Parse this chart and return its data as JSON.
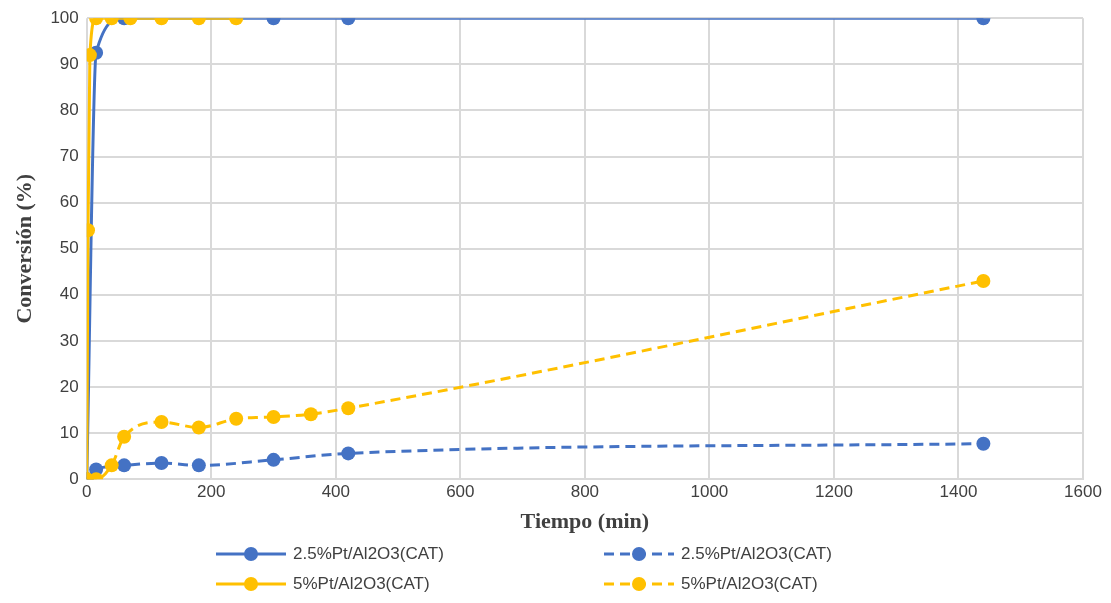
{
  "chart_data": {
    "type": "line",
    "xlabel": "Tiempo (min)",
    "ylabel": "Conversión (%)",
    "xlim": [
      0,
      1600
    ],
    "xticks": [
      0,
      200,
      400,
      600,
      800,
      1000,
      1200,
      1400,
      1600
    ],
    "ylim": [
      0,
      100
    ],
    "yticks": [
      0,
      10,
      20,
      30,
      40,
      50,
      60,
      70,
      80,
      90,
      100
    ],
    "grid": true,
    "legend": "bottom",
    "marker": "circle",
    "series": [
      {
        "name": "2.5%Pt/Al2O3(CAT)",
        "color": "#4472c4",
        "line_style": "solid",
        "x": [
          0,
          15,
          60,
          120,
          180,
          300,
          420,
          1440
        ],
        "values": [
          0,
          92.5,
          100,
          null,
          null,
          100,
          100,
          100
        ]
      },
      {
        "name": "2.5%Pt/Al2O3(CAT)",
        "color": "#4472c4",
        "line_style": "dashed",
        "x": [
          0,
          15,
          60,
          120,
          180,
          300,
          420,
          1440
        ],
        "values": [
          0,
          2.1,
          3.0,
          3.5,
          3.0,
          4.2,
          5.6,
          7.7
        ]
      },
      {
        "name": "5%Pt/Al2O3(CAT)",
        "color": "#ffc000",
        "line_style": "solid",
        "x": [
          0,
          2,
          5,
          15,
          40,
          70,
          120,
          180,
          240
        ],
        "values": [
          0,
          54,
          92,
          100,
          100,
          100,
          100,
          100,
          100
        ]
      },
      {
        "name": "5%Pt/Al2O3(CAT)",
        "color": "#ffc000",
        "line_style": "dashed",
        "x": [
          0,
          15,
          40,
          60,
          120,
          180,
          240,
          300,
          360,
          420,
          1440
        ],
        "values": [
          0,
          0,
          3.0,
          9.2,
          12.4,
          11.2,
          13.1,
          13.5,
          14.1,
          15.4,
          43.0
        ]
      }
    ]
  }
}
